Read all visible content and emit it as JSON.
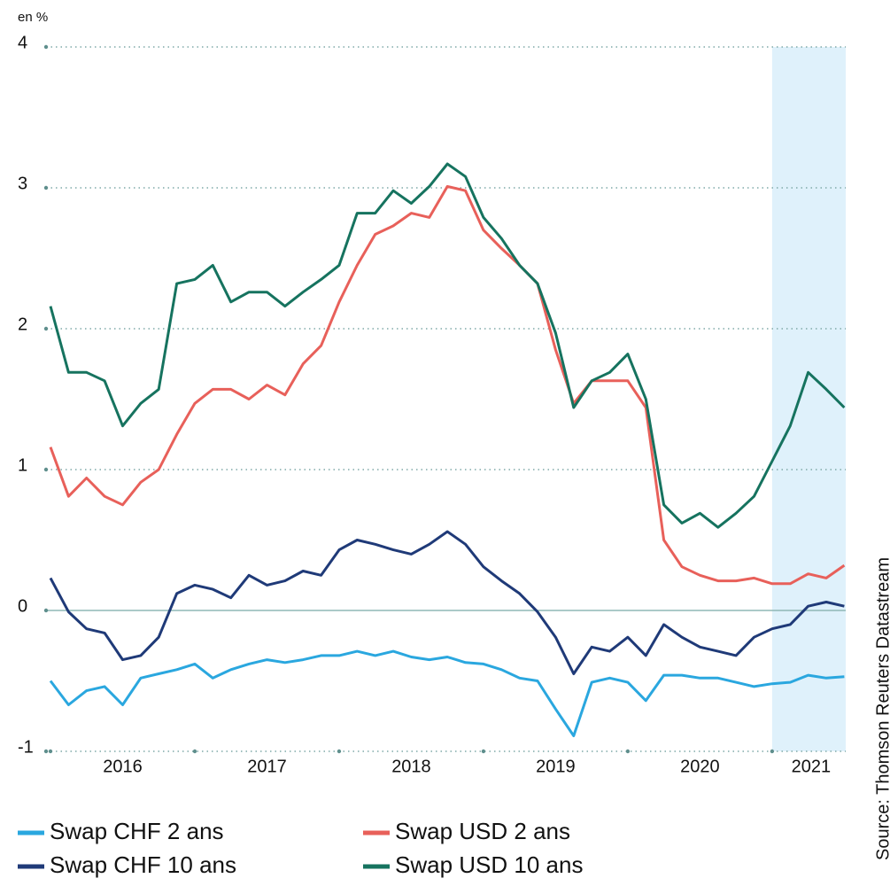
{
  "chart_data": {
    "type": "line",
    "unit_label": "en %",
    "source": "Source: Thomson Reuters Datastream",
    "x": [
      2016.0,
      2016.125,
      2016.25,
      2016.375,
      2016.5,
      2016.625,
      2016.75,
      2016.875,
      2017.0,
      2017.125,
      2017.25,
      2017.375,
      2017.5,
      2017.625,
      2017.75,
      2017.875,
      2018.0,
      2018.125,
      2018.25,
      2018.375,
      2018.5,
      2018.625,
      2018.75,
      2018.875,
      2019.0,
      2019.125,
      2019.25,
      2019.375,
      2019.5,
      2019.625,
      2019.75,
      2019.875,
      2020.0,
      2020.125,
      2020.25,
      2020.375,
      2020.5,
      2020.625,
      2020.75,
      2020.875,
      2021.0,
      2021.125,
      2021.25,
      2021.375,
      2021.5
    ],
    "series": [
      {
        "name": "Swap CHF 2 ans",
        "color": "#2aa7df",
        "values": [
          -0.5,
          -0.67,
          -0.57,
          -0.54,
          -0.67,
          -0.48,
          -0.45,
          -0.42,
          -0.38,
          -0.48,
          -0.42,
          -0.38,
          -0.35,
          -0.37,
          -0.35,
          -0.32,
          -0.32,
          -0.29,
          -0.32,
          -0.29,
          -0.33,
          -0.35,
          -0.33,
          -0.37,
          -0.38,
          -0.42,
          -0.48,
          -0.5,
          -0.7,
          -0.89,
          -0.51,
          -0.48,
          -0.51,
          -0.64,
          -0.46,
          -0.46,
          -0.48,
          -0.48,
          -0.51,
          -0.54,
          -0.52,
          -0.51,
          -0.46,
          -0.48,
          -0.47
        ]
      },
      {
        "name": "Swap USD 2 ans",
        "color": "#e8605a",
        "values": [
          1.16,
          0.81,
          0.94,
          0.81,
          0.75,
          0.91,
          1.0,
          1.25,
          1.47,
          1.57,
          1.57,
          1.5,
          1.6,
          1.53,
          1.75,
          1.88,
          2.19,
          2.45,
          2.67,
          2.73,
          2.82,
          2.79,
          3.01,
          2.98,
          2.7,
          2.57,
          2.45,
          2.32,
          1.85,
          1.47,
          1.63,
          1.63,
          1.63,
          1.44,
          0.5,
          0.31,
          0.25,
          0.21,
          0.21,
          0.23,
          0.19,
          0.19,
          0.26,
          0.23,
          0.32
        ]
      },
      {
        "name": "Swap CHF 10 ans",
        "color": "#1f3a78",
        "values": [
          0.23,
          -0.01,
          -0.13,
          -0.16,
          -0.35,
          -0.32,
          -0.19,
          0.12,
          0.18,
          0.15,
          0.09,
          0.25,
          0.18,
          0.21,
          0.28,
          0.25,
          0.43,
          0.5,
          0.47,
          0.43,
          0.4,
          0.47,
          0.56,
          0.47,
          0.31,
          0.21,
          0.12,
          -0.01,
          -0.19,
          -0.45,
          -0.26,
          -0.29,
          -0.19,
          -0.32,
          -0.1,
          -0.19,
          -0.26,
          -0.29,
          -0.32,
          -0.19,
          -0.13,
          -0.1,
          0.03,
          0.06,
          0.03
        ]
      },
      {
        "name": "Swap USD 10 ans",
        "color": "#16735f",
        "values": [
          2.16,
          1.69,
          1.69,
          1.63,
          1.31,
          1.47,
          1.57,
          2.32,
          2.35,
          2.45,
          2.19,
          2.26,
          2.26,
          2.16,
          2.26,
          2.35,
          2.45,
          2.82,
          2.82,
          2.98,
          2.89,
          3.01,
          3.17,
          3.08,
          2.79,
          2.64,
          2.45,
          2.32,
          1.97,
          1.44,
          1.63,
          1.69,
          1.82,
          1.5,
          0.75,
          0.62,
          0.69,
          0.59,
          0.69,
          0.81,
          1.06,
          1.31,
          1.69,
          1.57,
          1.44
        ]
      }
    ],
    "xlim": [
      2016.0,
      2021.51
    ],
    "xticks": [
      {
        "value": 2016.5,
        "label": "2016"
      },
      {
        "value": 2017.5,
        "label": "2017"
      },
      {
        "value": 2018.5,
        "label": "2018"
      },
      {
        "value": 2019.5,
        "label": "2019"
      },
      {
        "value": 2020.5,
        "label": "2020"
      },
      {
        "value": 2021.27,
        "label": "2021"
      }
    ],
    "xtick_marks": [
      2016,
      2017,
      2018,
      2019,
      2020,
      2021
    ],
    "shaded_region": [
      2021.0,
      2021.51
    ],
    "shade_color": "#dff1fb",
    "ylim": [
      -1,
      4
    ],
    "yticks": [
      -1,
      0,
      1,
      2,
      3,
      4
    ],
    "grid": true
  }
}
